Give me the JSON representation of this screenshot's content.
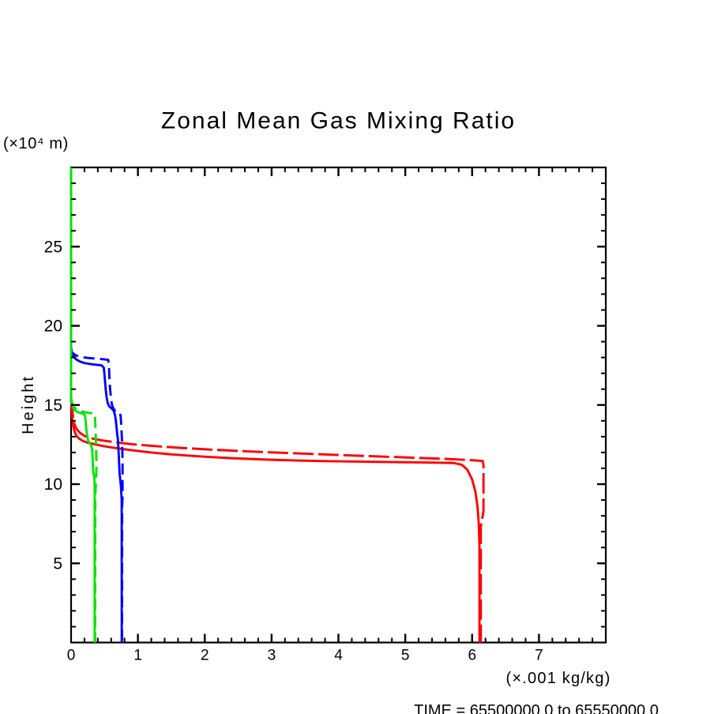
{
  "page": {
    "background": "#ffffff",
    "text_color": "#000000"
  },
  "chart_data": {
    "type": "line",
    "title": "Zonal Mean Gas Mixing Ratio",
    "xlabel": "(×.001 kg/kg)",
    "ylabel": "Height",
    "y_axis_unit": "(×10⁴ m)",
    "time_caption": "TIME = 65500000.0 to 65550000.0",
    "xlim": [
      0,
      8
    ],
    "ylim": [
      0,
      30
    ],
    "x_major_tick_step": 1,
    "x_minor_tick_step": 0.2,
    "y_major_tick_step": 5,
    "y_minor_tick_step": 1,
    "x_tick_labels": [
      {
        "value": 0,
        "label": "0"
      },
      {
        "value": 1,
        "label": "1"
      },
      {
        "value": 2,
        "label": "2"
      },
      {
        "value": 3,
        "label": "3"
      },
      {
        "value": 4,
        "label": "4"
      },
      {
        "value": 5,
        "label": "5"
      },
      {
        "value": 6,
        "label": "6"
      },
      {
        "value": 7,
        "label": "7"
      }
    ],
    "y_tick_labels": [
      {
        "value": 5,
        "label": "5"
      },
      {
        "value": 10,
        "label": "10"
      },
      {
        "value": 15,
        "label": "15"
      },
      {
        "value": 20,
        "label": "20"
      },
      {
        "value": 25,
        "label": "25"
      }
    ],
    "grid": false,
    "legend": null,
    "axis_color": "#000000",
    "series": [
      {
        "name": "red-solid",
        "color": "#ff0000",
        "style": "solid",
        "points": [
          [
            0,
            15.45
          ],
          [
            0.012,
            14.55
          ],
          [
            0.02,
            14.05
          ],
          [
            0.035,
            13.6
          ],
          [
            0.055,
            13.3
          ],
          [
            0.08,
            13.05
          ],
          [
            0.12,
            12.88
          ],
          [
            0.17,
            12.74
          ],
          [
            0.25,
            12.62
          ],
          [
            0.35,
            12.52
          ],
          [
            0.46,
            12.42
          ],
          [
            0.6,
            12.32
          ],
          [
            0.75,
            12.23
          ],
          [
            0.95,
            12.12
          ],
          [
            1.2,
            12.0
          ],
          [
            1.5,
            11.88
          ],
          [
            1.9,
            11.76
          ],
          [
            2.4,
            11.64
          ],
          [
            3.0,
            11.54
          ],
          [
            3.7,
            11.46
          ],
          [
            4.5,
            11.41
          ],
          [
            5.3,
            11.37
          ],
          [
            5.72,
            11.34
          ],
          [
            5.85,
            11.22
          ],
          [
            5.93,
            10.9
          ],
          [
            6.0,
            10.3
          ],
          [
            6.05,
            9.5
          ],
          [
            6.08,
            8.6
          ],
          [
            6.1,
            7.5
          ],
          [
            6.11,
            6.0
          ],
          [
            6.11,
            0
          ]
        ]
      },
      {
        "name": "red-dashed",
        "color": "#ff0000",
        "style": "dashed",
        "dash_pattern": "26 6",
        "points": [
          [
            0,
            15.5
          ],
          [
            0.012,
            14.9
          ],
          [
            0.03,
            14.25
          ],
          [
            0.05,
            13.8
          ],
          [
            0.08,
            13.5
          ],
          [
            0.13,
            13.25
          ],
          [
            0.2,
            13.05
          ],
          [
            0.3,
            12.9
          ],
          [
            0.45,
            12.77
          ],
          [
            0.65,
            12.65
          ],
          [
            0.9,
            12.53
          ],
          [
            1.2,
            12.42
          ],
          [
            1.6,
            12.3
          ],
          [
            2.1,
            12.18
          ],
          [
            2.7,
            12.06
          ],
          [
            3.4,
            11.94
          ],
          [
            4.2,
            11.81
          ],
          [
            5.0,
            11.69
          ],
          [
            5.7,
            11.58
          ],
          [
            6.05,
            11.5
          ],
          [
            6.16,
            11.46
          ],
          [
            6.17,
            11.2
          ],
          [
            6.17,
            8.3
          ],
          [
            6.15,
            7.8
          ],
          [
            6.13,
            7.3
          ],
          [
            6.13,
            0
          ]
        ]
      },
      {
        "name": "blue-solid",
        "color": "#0000ff",
        "style": "solid",
        "points": [
          [
            0,
            18.7
          ],
          [
            0.01,
            18.35
          ],
          [
            0.03,
            18.1
          ],
          [
            0.07,
            17.9
          ],
          [
            0.13,
            17.75
          ],
          [
            0.2,
            17.65
          ],
          [
            0.3,
            17.58
          ],
          [
            0.4,
            17.53
          ],
          [
            0.46,
            17.5
          ],
          [
            0.49,
            17.35
          ],
          [
            0.5,
            16.9
          ],
          [
            0.51,
            16.4
          ],
          [
            0.52,
            15.9
          ],
          [
            0.535,
            15.4
          ],
          [
            0.55,
            15.1
          ],
          [
            0.57,
            14.92
          ],
          [
            0.6,
            14.8
          ],
          [
            0.63,
            14.68
          ],
          [
            0.645,
            14.55
          ],
          [
            0.66,
            14.3
          ],
          [
            0.67,
            14.0
          ],
          [
            0.68,
            13.6
          ],
          [
            0.69,
            13.15
          ],
          [
            0.7,
            12.85
          ],
          [
            0.705,
            12.5
          ],
          [
            0.71,
            12.1
          ],
          [
            0.715,
            11.7
          ],
          [
            0.72,
            11.2
          ],
          [
            0.725,
            10.7
          ],
          [
            0.735,
            10.3
          ],
          [
            0.745,
            9.9
          ],
          [
            0.752,
            9.4
          ],
          [
            0.757,
            9.0
          ],
          [
            0.758,
            0
          ]
        ]
      },
      {
        "name": "blue-dashed",
        "color": "#0000ff",
        "style": "dashed",
        "dash_pattern": "14 7",
        "points": [
          [
            0,
            18.55
          ],
          [
            0.01,
            18.35
          ],
          [
            0.05,
            18.18
          ],
          [
            0.12,
            18.05
          ],
          [
            0.25,
            17.97
          ],
          [
            0.45,
            17.9
          ],
          [
            0.555,
            17.85
          ],
          [
            0.565,
            17.6
          ],
          [
            0.57,
            17.1
          ],
          [
            0.575,
            16.6
          ],
          [
            0.582,
            16.1
          ],
          [
            0.59,
            15.75
          ],
          [
            0.6,
            15.35
          ],
          [
            0.61,
            15.05
          ],
          [
            0.625,
            14.85
          ],
          [
            0.645,
            14.7
          ],
          [
            0.665,
            14.62
          ],
          [
            0.7,
            14.55
          ],
          [
            0.73,
            14.5
          ],
          [
            0.742,
            14.3
          ],
          [
            0.748,
            13.9
          ],
          [
            0.753,
            13.5
          ],
          [
            0.758,
            13.1
          ],
          [
            0.763,
            12.7
          ],
          [
            0.767,
            12.2
          ],
          [
            0.77,
            11.5
          ],
          [
            0.77,
            9.2
          ],
          [
            0.764,
            8.6
          ],
          [
            0.762,
            0
          ]
        ]
      },
      {
        "name": "green-solid",
        "color": "#00e600",
        "style": "solid",
        "points": [
          [
            0,
            30
          ],
          [
            0,
            15.4
          ],
          [
            0.01,
            15.05
          ],
          [
            0.03,
            14.82
          ],
          [
            0.06,
            14.65
          ],
          [
            0.1,
            14.55
          ],
          [
            0.15,
            14.48
          ],
          [
            0.19,
            14.44
          ],
          [
            0.21,
            14.3
          ],
          [
            0.22,
            13.9
          ],
          [
            0.23,
            13.4
          ],
          [
            0.245,
            12.95
          ],
          [
            0.26,
            12.7
          ],
          [
            0.285,
            12.55
          ],
          [
            0.3,
            12.45
          ],
          [
            0.315,
            12.2
          ],
          [
            0.32,
            11.8
          ],
          [
            0.325,
            11.3
          ],
          [
            0.33,
            10.85
          ],
          [
            0.34,
            10.6
          ],
          [
            0.35,
            10.3
          ],
          [
            0.353,
            9.8
          ],
          [
            0.353,
            0
          ]
        ]
      },
      {
        "name": "green-dashed",
        "color": "#00e600",
        "style": "dashed",
        "dash_pattern": "14 7",
        "points": [
          [
            0,
            30
          ],
          [
            0,
            15.45
          ],
          [
            0.015,
            15.12
          ],
          [
            0.04,
            14.9
          ],
          [
            0.08,
            14.72
          ],
          [
            0.13,
            14.62
          ],
          [
            0.2,
            14.55
          ],
          [
            0.28,
            14.5
          ],
          [
            0.35,
            14.45
          ],
          [
            0.358,
            14.2
          ],
          [
            0.363,
            13.7
          ],
          [
            0.368,
            13.1
          ],
          [
            0.373,
            12.5
          ],
          [
            0.377,
            11.9
          ],
          [
            0.38,
            11.3
          ],
          [
            0.378,
            10.8
          ],
          [
            0.373,
            10.4
          ],
          [
            0.368,
            9.8
          ],
          [
            0.362,
            9.2
          ],
          [
            0.36,
            0
          ]
        ]
      }
    ]
  }
}
